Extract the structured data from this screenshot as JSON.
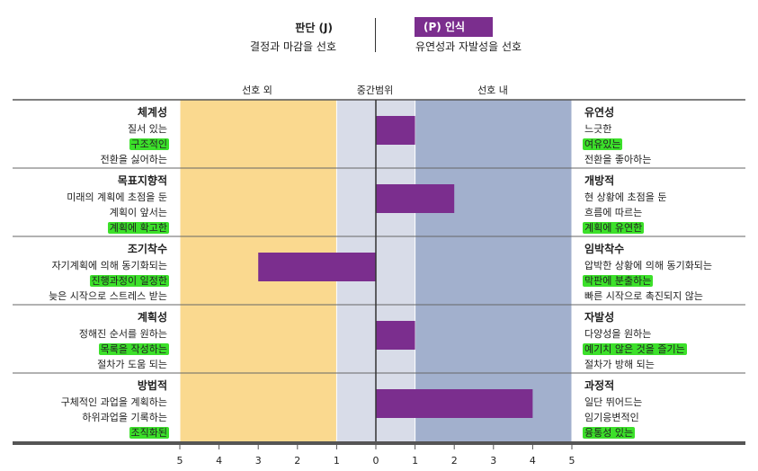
{
  "header": {
    "left_title": "판단 (J)",
    "left_sub": "결정과 마감을 선호",
    "right_title": "(P) 인식",
    "right_sub": "유연성과 자발성을 선호"
  },
  "zones": {
    "outer": "선호 외",
    "middle": "중간범위",
    "inner": "선호 내"
  },
  "colors": {
    "outer_left": "#FAD98F",
    "middle": "#D8DCE8",
    "right_fill": "#A2B0CD",
    "bar": "#7B2E8E",
    "highlight": "#3CE02A"
  },
  "rows": [
    {
      "left_title": "체계성",
      "left_lines": [
        "질서 있는",
        "구조적인",
        "전환을 싫어하는"
      ],
      "left_hl": [
        false,
        true,
        false
      ],
      "right_title": "유연성",
      "right_lines": [
        "느긋한",
        "여유있는",
        "전환을 좋아하는"
      ],
      "right_hl": [
        false,
        true,
        false
      ]
    },
    {
      "left_title": "목표지향적",
      "left_lines": [
        "미래의 계획에 초점을 둔",
        "계획이 앞서는",
        "계획에 확고한"
      ],
      "left_hl": [
        false,
        false,
        true
      ],
      "right_title": "개방적",
      "right_lines": [
        "현 상황에 초점을 둔",
        "흐름에 따르는",
        "계획에 유연한"
      ],
      "right_hl": [
        false,
        false,
        true
      ]
    },
    {
      "left_title": "조기착수",
      "left_lines": [
        "자기계획에 의해 동기화되는",
        "진행과정이 일정한",
        "늦은 시작으로 스트레스 받는"
      ],
      "left_hl": [
        false,
        true,
        false
      ],
      "right_title": "임박착수",
      "right_lines": [
        "압박한 상황에 의해 동기화되는",
        "막판에 분출하는",
        "빠른 시작으로 촉진되지 않는"
      ],
      "right_hl": [
        false,
        true,
        false
      ]
    },
    {
      "left_title": "계획성",
      "left_lines": [
        "정해진 순서를 원하는",
        "목록을 작성하는",
        "절차가 도움 되는"
      ],
      "left_hl": [
        false,
        true,
        false
      ],
      "right_title": "자발성",
      "right_lines": [
        "다양성을 원하는",
        "예기치 않은 것을 즐기는",
        "절차가 방해 되는"
      ],
      "right_hl": [
        false,
        true,
        false
      ]
    },
    {
      "left_title": "방법적",
      "left_lines": [
        "구체적인 과업을 계획하는",
        "하위과업을 기록하는",
        "조직화된"
      ],
      "left_hl": [
        false,
        false,
        true
      ],
      "right_title": "과정적",
      "right_lines": [
        "일단 뛰어드는",
        "임기응변적인",
        "융통성 있는"
      ],
      "right_hl": [
        false,
        false,
        true
      ]
    }
  ],
  "chart_data": {
    "type": "bar",
    "orientation": "horizontal",
    "categories": [
      "체계성 / 유연성",
      "목표지향적 / 개방적",
      "조기착수 / 임박착수",
      "계획성 / 자발성",
      "방법적 / 과정적"
    ],
    "values": [
      1,
      2,
      -3,
      1,
      4
    ],
    "xlim": [
      -5,
      5
    ],
    "xticks": [
      5,
      4,
      3,
      2,
      1,
      0,
      1,
      2,
      3,
      4,
      5
    ],
    "title": "",
    "xlabel": "",
    "ylabel": ""
  }
}
